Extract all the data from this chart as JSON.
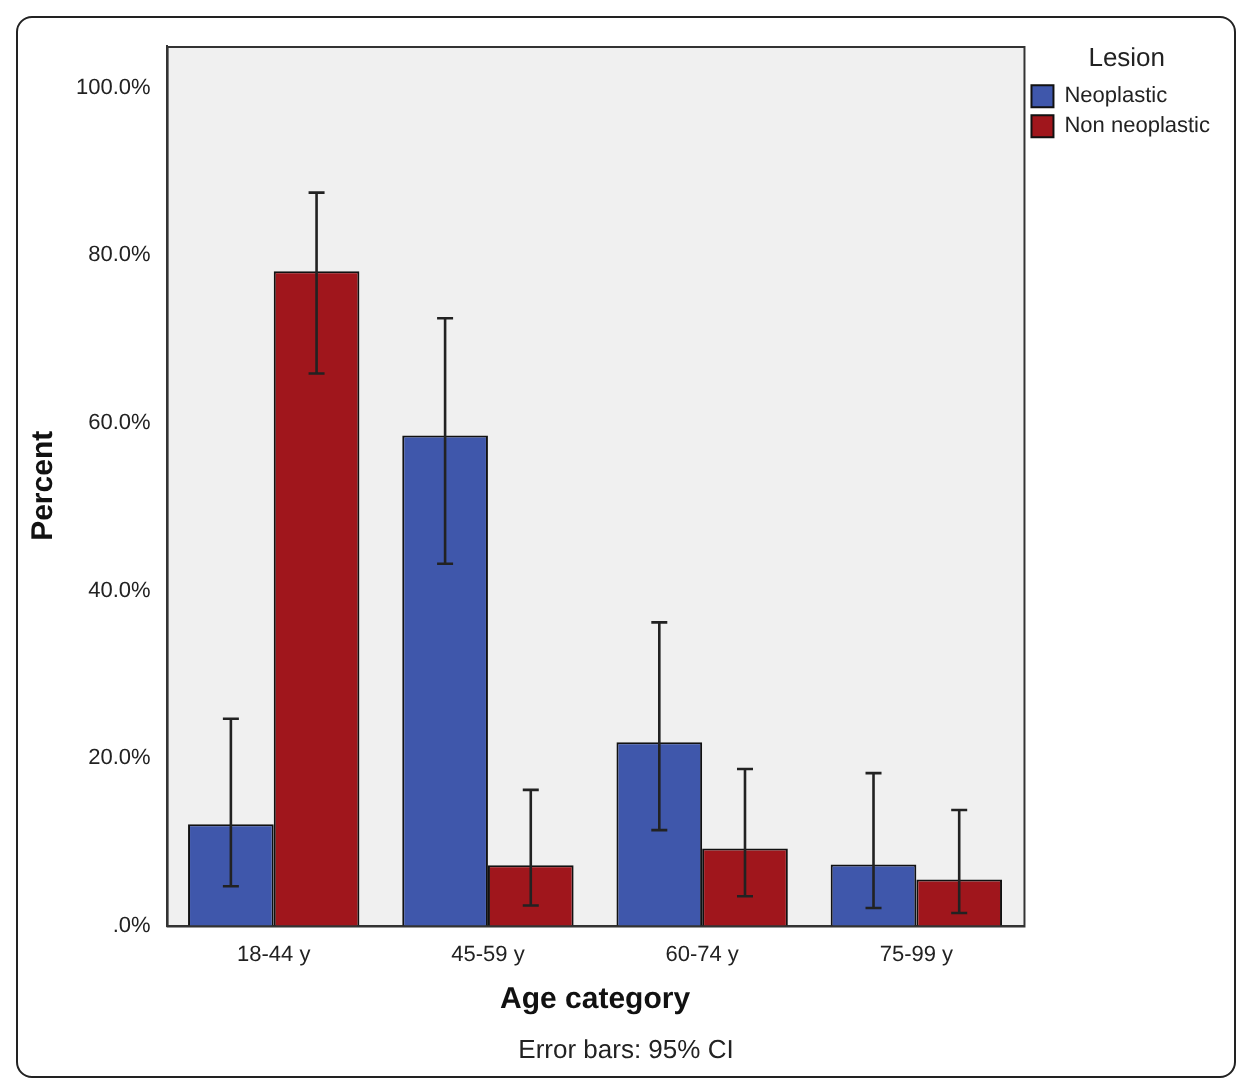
{
  "chart_data": {
    "type": "bar",
    "xlabel": "Age category",
    "ylabel": "Percent",
    "legend_title": "Lesion",
    "legend": "top right",
    "grid": false,
    "categories": [
      "18-44 y",
      "45-59 y",
      "60-74 y",
      "75-99 y"
    ],
    "series": [
      {
        "name": "Neoplastic",
        "color": "#3f57ab",
        "values": [
          12.1,
          58.5,
          21.9,
          7.3
        ],
        "errors": [
          [
            4.7,
            24.7
          ],
          [
            43.2,
            72.5
          ],
          [
            11.4,
            36.2
          ],
          [
            2.1,
            18.2
          ]
        ]
      },
      {
        "name": "Non neoplastic",
        "color": "#a0161c",
        "values": [
          78.1,
          7.2,
          9.2,
          5.5
        ],
        "errors": [
          [
            65.9,
            87.5
          ],
          [
            2.4,
            16.2
          ],
          [
            3.5,
            18.7
          ],
          [
            1.5,
            13.8
          ]
        ]
      }
    ],
    "ylim": [
      0,
      105
    ],
    "yticks": [
      {
        "value": 0,
        "label": ".0%"
      },
      {
        "value": 20,
        "label": "20.0%"
      },
      {
        "value": 40,
        "label": "40.0%"
      },
      {
        "value": 60,
        "label": "60.0%"
      },
      {
        "value": 80,
        "label": "80.0%"
      },
      {
        "value": 100,
        "label": "100.0%"
      }
    ],
    "annotations": [
      "Error bars: 95% CI"
    ]
  }
}
